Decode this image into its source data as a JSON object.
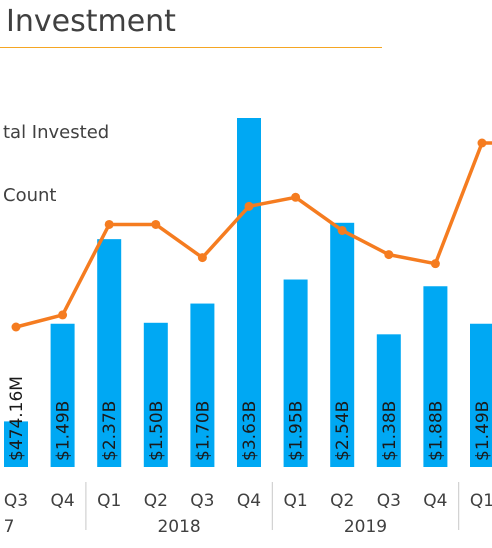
{
  "title": "Investment",
  "chart_data": {
    "type": "bar",
    "categories": [
      "Q3",
      "Q4",
      "Q1",
      "Q2",
      "Q3",
      "Q4",
      "Q1",
      "Q2",
      "Q3",
      "Q4",
      "Q1"
    ],
    "years": [
      {
        "label": "7",
        "start": 0,
        "end": 1
      },
      {
        "label": "2018",
        "start": 2,
        "end": 5
      },
      {
        "label": "2019",
        "start": 6,
        "end": 9
      }
    ],
    "series": [
      {
        "name": "tal Invested",
        "kind": "bar",
        "color": "#00A8F3",
        "values": [
          0.47416,
          1.49,
          2.37,
          1.5,
          1.7,
          3.63,
          1.95,
          2.54,
          1.38,
          1.88,
          1.49
        ],
        "labels": [
          "$474.16M",
          "$1.49B",
          "$2.37B",
          "$1.50B",
          "$1.70B",
          "$3.63B",
          "$1.95B",
          "$2.54B",
          "$1.38B",
          "$1.88B",
          "$1.49B"
        ]
      },
      {
        "name": "Count",
        "kind": "line",
        "color": "#F57C20",
        "values": [
          0.39,
          0.43,
          0.73,
          0.73,
          0.62,
          0.79,
          0.82,
          0.71,
          0.63,
          0.6,
          1.0
        ]
      }
    ],
    "ylim_bars": [
      0,
      3.63
    ],
    "legend": "top-left"
  }
}
